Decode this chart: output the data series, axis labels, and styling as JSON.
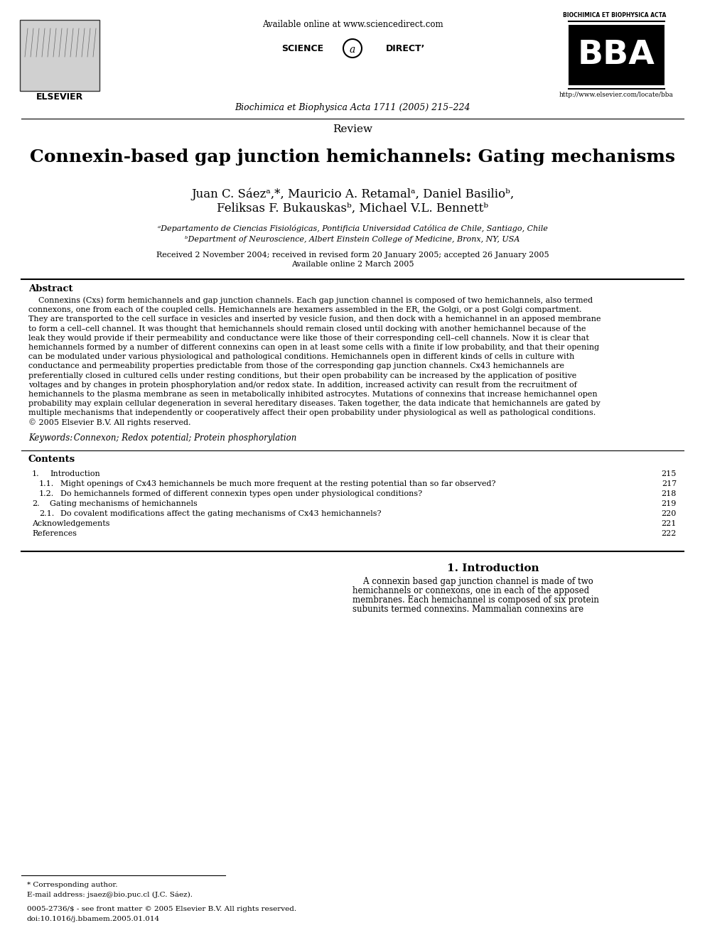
{
  "bg_color": "#ffffff",
  "header_available_online": "Available online at www.sciencedirect.com",
  "journal_line": "Biochimica et Biophysica Acta 1711 (2005) 215–224",
  "bba_url": "http://www.elsevier.com/locate/bba",
  "section_label": "Review",
  "title": "Connexin-based gap junction hemichannels: Gating mechanisms",
  "author_line1": "Juan C. Sáezᵃ,*, Mauricio A. Retamalᵃ, Daniel Basilioᵇ,",
  "author_line2": "Feliksas F. Bukauskasᵇ, Michael V.L. Bennettᵇ",
  "affil_a": "ᵃDepartamento de Ciencias Fisiológicas, Pontificia Universidad Católica de Chile, Santiago, Chile",
  "affil_b": "ᵇDepartment of Neuroscience, Albert Einstein College of Medicine, Bronx, NY, USA",
  "received": "Received 2 November 2004; received in revised form 20 January 2005; accepted 26 January 2005",
  "available_online": "Available online 2 March 2005",
  "abstract_title": "Abstract",
  "abstract_lines": [
    "    Connexins (Cxs) form hemichannels and gap junction channels. Each gap junction channel is composed of two hemichannels, also termed",
    "connexons, one from each of the coupled cells. Hemichannels are hexamers assembled in the ER, the Golgi, or a post Golgi compartment.",
    "They are transported to the cell surface in vesicles and inserted by vesicle fusion, and then dock with a hemichannel in an apposed membrane",
    "to form a cell–cell channel. It was thought that hemichannels should remain closed until docking with another hemichannel because of the",
    "leak they would provide if their permeability and conductance were like those of their corresponding cell–cell channels. Now it is clear that",
    "hemichannels formed by a number of different connexins can open in at least some cells with a finite if low probability, and that their opening",
    "can be modulated under various physiological and pathological conditions. Hemichannels open in different kinds of cells in culture with",
    "conductance and permeability properties predictable from those of the corresponding gap junction channels. Cx43 hemichannels are",
    "preferentially closed in cultured cells under resting conditions, but their open probability can be increased by the application of positive",
    "voltages and by changes in protein phosphorylation and/or redox state. In addition, increased activity can result from the recruitment of",
    "hemichannels to the plasma membrane as seen in metabolically inhibited astrocytes. Mutations of connexins that increase hemichannel open",
    "probability may explain cellular degeneration in several hereditary diseases. Taken together, the data indicate that hemichannels are gated by",
    "multiple mechanisms that independently or cooperatively affect their open probability under physiological as well as pathological conditions.",
    "© 2005 Elsevier B.V. All rights reserved."
  ],
  "keywords_label": "Keywords:",
  "keywords_text": " Connexon; Redox potential; Protein phosphorylation",
  "contents_title": "Contents",
  "contents_entries": [
    {
      "num": "1.",
      "title": "Introduction",
      "page": "215"
    },
    {
      "num": "1.1.",
      "title": "Might openings of Cx43 hemichannels be much more frequent at the resting potential than so far observed?",
      "page": "217"
    },
    {
      "num": "1.2.",
      "title": "Do hemichannels formed of different connexin types open under physiological conditions?",
      "page": "218"
    },
    {
      "num": "2.",
      "title": "Gating mechanisms of hemichannels",
      "page": "219"
    },
    {
      "num": "2.1.",
      "title": "Do covalent modifications affect the gating mechanisms of Cx43 hemichannels?",
      "page": "220"
    },
    {
      "num": "",
      "title": "Acknowledgements",
      "page": "221"
    },
    {
      "num": "",
      "title": "References",
      "page": "222"
    }
  ],
  "intro_section": "1. Introduction",
  "intro_lines": [
    "    A connexin based gap junction channel is made of two",
    "hemichannels or connexons, one in each of the apposed",
    "membranes. Each hemichannel is composed of six protein",
    "subunits termed connexins. Mammalian connexins are"
  ],
  "footer_corresponding": "* Corresponding author.",
  "footer_email": "E-mail address: jsaez@bio.puc.cl (J.C. Sáez).",
  "footer_issn": "0005-2736/$ - see front matter © 2005 Elsevier B.V. All rights reserved.",
  "footer_doi": "doi:10.1016/j.bbamem.2005.01.014"
}
